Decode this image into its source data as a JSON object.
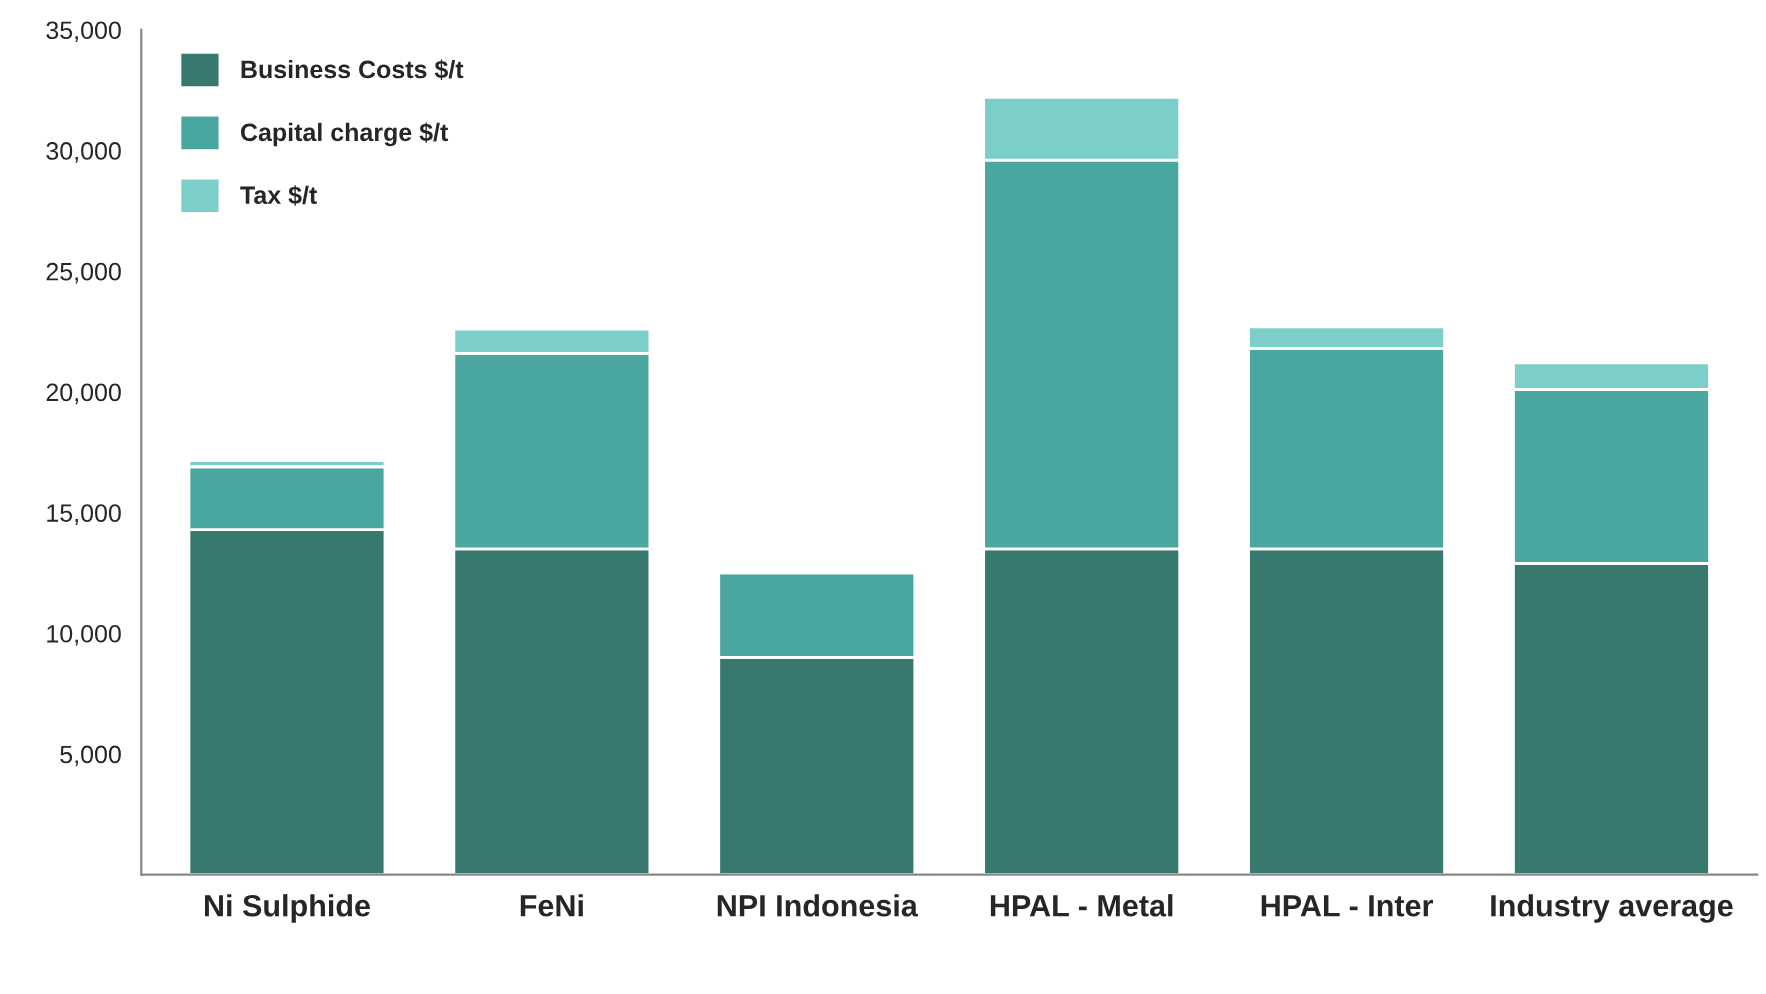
{
  "chart_data": {
    "type": "bar",
    "stacked": true,
    "categories": [
      "Ni Sulphide",
      "FeNi",
      "NPI Indonesia",
      "HPAL - Metal",
      "HPAL - Inter",
      "Industry average"
    ],
    "series": [
      {
        "name": "Business Costs $/t",
        "color": "#37796f",
        "values": [
          14300,
          13500,
          9000,
          13500,
          13500,
          12900
        ]
      },
      {
        "name": "Capital charge $/t",
        "color": "#4aa79f",
        "values": [
          2600,
          8100,
          3500,
          16100,
          8300,
          7200
        ]
      },
      {
        "name": "Tax $/t",
        "color": "#7ccfc8",
        "values": [
          250,
          1000,
          100,
          2600,
          900,
          1100
        ]
      }
    ],
    "ylim": [
      0,
      35000
    ],
    "yticks": [
      {
        "value": 5000,
        "label": "5,000"
      },
      {
        "value": 10000,
        "label": "10,000"
      },
      {
        "value": 15000,
        "label": "15,000"
      },
      {
        "value": 20000,
        "label": "20,000"
      },
      {
        "value": 25000,
        "label": "25,000"
      },
      {
        "value": 30000,
        "label": "30,000"
      },
      {
        "value": 35000,
        "label": "35,000"
      }
    ],
    "grid": false,
    "legend": "top left"
  }
}
